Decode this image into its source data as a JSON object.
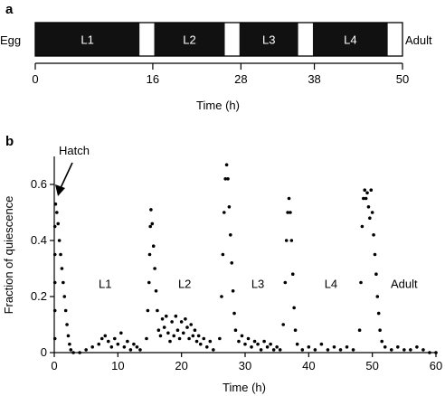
{
  "panel_a": {
    "letter": "a",
    "start_label": "Egg",
    "end_label": "Adult",
    "xlabel": "Time (h)",
    "ticks": [
      0,
      16,
      28,
      38,
      50
    ],
    "colors": {
      "larval_stage": "#111111",
      "lethargus": "#ffffff"
    }
  },
  "panel_b": {
    "letter": "b",
    "hatch_label": "Hatch",
    "ylabel": "Fraction of quiescence",
    "xlabel": "Time (h)"
  },
  "chart_data": [
    {
      "type": "bar",
      "orientation": "horizontal-timeline",
      "xlabel": "Time (h)",
      "xlim": [
        0,
        50
      ],
      "xticks": [
        "0",
        "16",
        "28",
        "38",
        "50"
      ],
      "segments": [
        {
          "label": "L1",
          "start": 0,
          "end": 14.2,
          "kind": "stage"
        },
        {
          "label": "",
          "start": 14.2,
          "end": 16.2,
          "kind": "lethargus"
        },
        {
          "label": "L2",
          "start": 16.2,
          "end": 25.8,
          "kind": "stage"
        },
        {
          "label": "",
          "start": 25.8,
          "end": 27.8,
          "kind": "lethargus"
        },
        {
          "label": "L3",
          "start": 27.8,
          "end": 35.8,
          "kind": "stage"
        },
        {
          "label": "",
          "start": 35.8,
          "end": 37.8,
          "kind": "lethargus"
        },
        {
          "label": "L4",
          "start": 37.8,
          "end": 48.0,
          "kind": "stage"
        },
        {
          "label": "",
          "start": 48.0,
          "end": 50.0,
          "kind": "lethargus"
        }
      ],
      "start_label": "Egg",
      "end_label": "Adult"
    },
    {
      "type": "scatter",
      "xlabel": "Time (h)",
      "ylabel": "Fraction of quiescence",
      "xlim": [
        0,
        60
      ],
      "ylim": [
        0,
        0.7
      ],
      "xticks": [
        "0",
        "10",
        "20",
        "30",
        "40",
        "50",
        "60"
      ],
      "yticks": [
        "0",
        "0.2",
        "0.4",
        "0.6"
      ],
      "annotations": [
        {
          "text": "Hatch",
          "x": 0.5,
          "y": 0.57
        },
        {
          "text": "L1",
          "x": 8,
          "y": 0.23
        },
        {
          "text": "L2",
          "x": 20.5,
          "y": 0.23
        },
        {
          "text": "L3",
          "x": 32,
          "y": 0.23
        },
        {
          "text": "L4",
          "x": 43.5,
          "y": 0.23
        },
        {
          "text": "Adult",
          "x": 55,
          "y": 0.23
        }
      ],
      "series": [
        {
          "points": [
            [
              0.1,
              0.05
            ],
            [
              0.1,
              0.15
            ],
            [
              0.1,
              0.25
            ],
            [
              0.1,
              0.35
            ],
            [
              0.1,
              0.45
            ],
            [
              0.2,
              0.53
            ],
            [
              0.4,
              0.5
            ],
            [
              0.6,
              0.46
            ],
            [
              0.8,
              0.4
            ],
            [
              1.0,
              0.35
            ],
            [
              1.2,
              0.3
            ],
            [
              1.4,
              0.25
            ],
            [
              1.6,
              0.2
            ],
            [
              1.8,
              0.15
            ],
            [
              2.0,
              0.1
            ],
            [
              2.2,
              0.06
            ],
            [
              2.4,
              0.03
            ],
            [
              2.6,
              0.01
            ],
            [
              3.0,
              0.0
            ],
            [
              4.0,
              0.0
            ],
            [
              5.0,
              0.01
            ],
            [
              6.0,
              0.02
            ],
            [
              7.0,
              0.03
            ],
            [
              7.5,
              0.05
            ],
            [
              8.0,
              0.06
            ],
            [
              8.5,
              0.04
            ],
            [
              9.0,
              0.02
            ],
            [
              9.5,
              0.05
            ],
            [
              10.0,
              0.03
            ],
            [
              10.5,
              0.07
            ],
            [
              11.0,
              0.02
            ],
            [
              11.5,
              0.04
            ],
            [
              12.0,
              0.01
            ],
            [
              12.5,
              0.03
            ],
            [
              13.0,
              0.02
            ],
            [
              13.5,
              0.01
            ],
            [
              14.5,
              0.05
            ],
            [
              14.7,
              0.15
            ],
            [
              14.9,
              0.25
            ],
            [
              15.0,
              0.35
            ],
            [
              15.1,
              0.45
            ],
            [
              15.2,
              0.51
            ],
            [
              15.4,
              0.46
            ],
            [
              15.6,
              0.38
            ],
            [
              15.8,
              0.3
            ],
            [
              16.0,
              0.22
            ],
            [
              16.2,
              0.15
            ],
            [
              16.4,
              0.08
            ],
            [
              16.7,
              0.06
            ],
            [
              17.0,
              0.12
            ],
            [
              17.3,
              0.09
            ],
            [
              17.6,
              0.13
            ],
            [
              17.9,
              0.07
            ],
            [
              18.2,
              0.04
            ],
            [
              18.5,
              0.11
            ],
            [
              18.8,
              0.06
            ],
            [
              19.1,
              0.13
            ],
            [
              19.4,
              0.08
            ],
            [
              19.7,
              0.05
            ],
            [
              20.0,
              0.11
            ],
            [
              20.3,
              0.07
            ],
            [
              20.6,
              0.12
            ],
            [
              20.9,
              0.09
            ],
            [
              21.2,
              0.05
            ],
            [
              21.5,
              0.1
            ],
            [
              21.8,
              0.06
            ],
            [
              22.1,
              0.08
            ],
            [
              22.4,
              0.04
            ],
            [
              22.7,
              0.06
            ],
            [
              23.0,
              0.03
            ],
            [
              23.5,
              0.05
            ],
            [
              24.0,
              0.02
            ],
            [
              24.5,
              0.04
            ],
            [
              25.0,
              0.01
            ],
            [
              26.0,
              0.05
            ],
            [
              26.3,
              0.2
            ],
            [
              26.5,
              0.35
            ],
            [
              26.7,
              0.5
            ],
            [
              26.9,
              0.62
            ],
            [
              27.1,
              0.67
            ],
            [
              27.3,
              0.62
            ],
            [
              27.5,
              0.52
            ],
            [
              27.7,
              0.42
            ],
            [
              27.9,
              0.32
            ],
            [
              28.1,
              0.22
            ],
            [
              28.3,
              0.14
            ],
            [
              28.5,
              0.08
            ],
            [
              29.0,
              0.04
            ],
            [
              29.5,
              0.06
            ],
            [
              30.0,
              0.03
            ],
            [
              30.5,
              0.05
            ],
            [
              31.0,
              0.02
            ],
            [
              31.5,
              0.04
            ],
            [
              32.0,
              0.03
            ],
            [
              32.5,
              0.01
            ],
            [
              33.0,
              0.04
            ],
            [
              33.5,
              0.02
            ],
            [
              34.0,
              0.03
            ],
            [
              34.5,
              0.01
            ],
            [
              35.0,
              0.02
            ],
            [
              35.5,
              0.01
            ],
            [
              36.0,
              0.1
            ],
            [
              36.3,
              0.25
            ],
            [
              36.5,
              0.4
            ],
            [
              36.7,
              0.5
            ],
            [
              36.9,
              0.55
            ],
            [
              37.1,
              0.5
            ],
            [
              37.3,
              0.4
            ],
            [
              37.5,
              0.28
            ],
            [
              37.7,
              0.16
            ],
            [
              37.9,
              0.08
            ],
            [
              38.2,
              0.03
            ],
            [
              39.0,
              0.01
            ],
            [
              40.0,
              0.02
            ],
            [
              41.0,
              0.01
            ],
            [
              42.0,
              0.03
            ],
            [
              43.0,
              0.01
            ],
            [
              44.0,
              0.02
            ],
            [
              45.0,
              0.01
            ],
            [
              46.0,
              0.02
            ],
            [
              47.0,
              0.01
            ],
            [
              48.0,
              0.08
            ],
            [
              48.2,
              0.25
            ],
            [
              48.4,
              0.45
            ],
            [
              48.6,
              0.55
            ],
            [
              48.8,
              0.58
            ],
            [
              49.0,
              0.55
            ],
            [
              49.2,
              0.57
            ],
            [
              49.4,
              0.52
            ],
            [
              49.6,
              0.48
            ],
            [
              49.8,
              0.58
            ],
            [
              50.0,
              0.5
            ],
            [
              50.2,
              0.42
            ],
            [
              50.4,
              0.35
            ],
            [
              50.6,
              0.28
            ],
            [
              50.8,
              0.2
            ],
            [
              51.0,
              0.14
            ],
            [
              51.2,
              0.08
            ],
            [
              51.5,
              0.04
            ],
            [
              52.0,
              0.02
            ],
            [
              53.0,
              0.01
            ],
            [
              54.0,
              0.02
            ],
            [
              55.0,
              0.01
            ],
            [
              56.0,
              0.01
            ],
            [
              57.0,
              0.02
            ],
            [
              58.0,
              0.01
            ],
            [
              59.0,
              0.0
            ],
            [
              60.0,
              0.0
            ]
          ]
        }
      ]
    }
  ]
}
